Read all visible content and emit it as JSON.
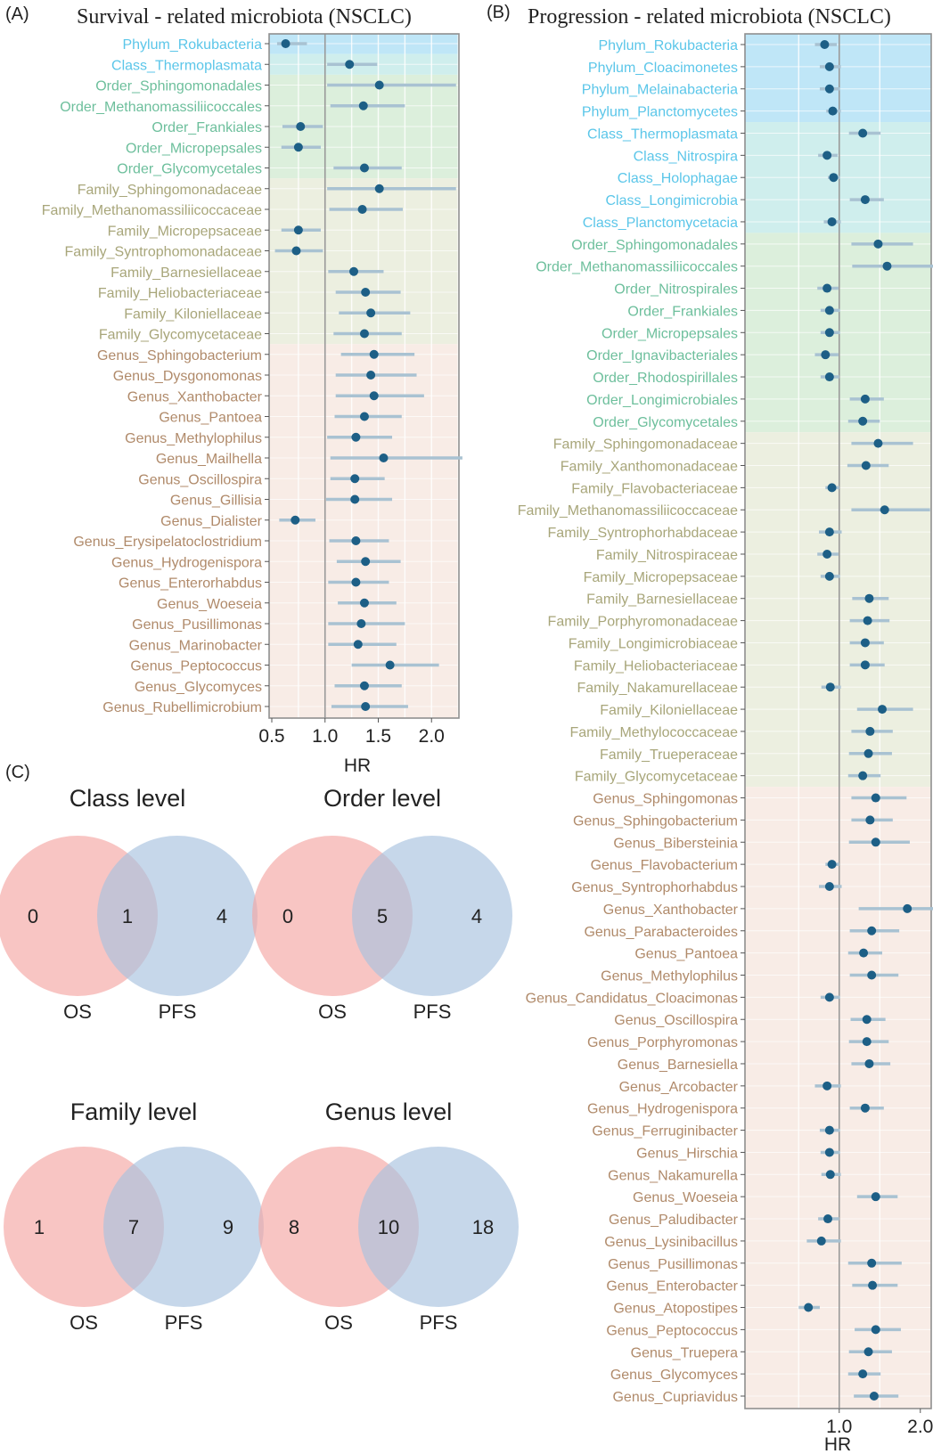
{
  "colors": {
    "phylum": "#5bc6e9",
    "class": "#5bc6e9",
    "order": "#6dbf9c",
    "family": "#a8a67a",
    "genus": "#b08a6a",
    "band_phylum": "#bfe6f7",
    "band_class": "#cfeeed",
    "band_order": "#dcefdc",
    "band_family": "#ecefe0",
    "band_genus": "#f8ece6",
    "point": "#1d5f86",
    "ci": "#a9c2d2",
    "venn_os": "#f4a6a3",
    "venn_pfs": "#a8c2df"
  },
  "panel_a": {
    "label": "(A)",
    "title": "Survival - related microbiota (NSCLC)",
    "xlabel": "HR",
    "ticks": [
      "0.5",
      "1.0",
      "1.5",
      "2.0"
    ]
  },
  "panel_b": {
    "label": "(B)",
    "title": "Progression - related microbiota (NSCLC)",
    "xlabel": "HR",
    "ticks": [
      "1.0",
      "2.0"
    ]
  },
  "panel_c": {
    "label": "(C)",
    "venns": [
      {
        "title": "Class level",
        "left": "0",
        "mid": "1",
        "right": "4",
        "label_left": "OS",
        "label_right": "PFS"
      },
      {
        "title": "Order level",
        "left": "0",
        "mid": "5",
        "right": "4",
        "label_left": "OS",
        "label_right": "PFS"
      },
      {
        "title": "Family level",
        "left": "1",
        "mid": "7",
        "right": "9",
        "label_left": "OS",
        "label_right": "PFS"
      },
      {
        "title": "Genus level",
        "left": "8",
        "mid": "10",
        "right": "18",
        "label_left": "OS",
        "label_right": "PFS"
      }
    ]
  },
  "chart_data": [
    {
      "type": "scatter",
      "subtype": "forest",
      "title": "Survival - related microbiota (NSCLC)",
      "xlabel": "HR",
      "xlim": [
        0.5,
        2.3
      ],
      "reference_line": 1.0,
      "grid": true,
      "rows": [
        {
          "label": "Phylum_Rokubacteria",
          "level": "phylum",
          "hr": 0.63,
          "lo": 0.55,
          "hi": 0.83
        },
        {
          "label": "Class_Thermoplasmata",
          "level": "class",
          "hr": 1.23,
          "lo": 1.02,
          "hi": 1.49
        },
        {
          "label": "Order_Sphingomonadales",
          "level": "order",
          "hr": 1.51,
          "lo": 1.02,
          "hi": 2.23
        },
        {
          "label": "Order_Methanomassiliicoccales",
          "level": "order",
          "hr": 1.36,
          "lo": 1.05,
          "hi": 1.75
        },
        {
          "label": "Order_Frankiales",
          "level": "order",
          "hr": 0.77,
          "lo": 0.6,
          "hi": 0.98
        },
        {
          "label": "Order_Micropepsales",
          "level": "order",
          "hr": 0.75,
          "lo": 0.59,
          "hi": 0.96
        },
        {
          "label": "Order_Glycomycetales",
          "level": "order",
          "hr": 1.37,
          "lo": 1.08,
          "hi": 1.72
        },
        {
          "label": "Family_Sphingomonadaceae",
          "level": "family",
          "hr": 1.51,
          "lo": 1.02,
          "hi": 2.23
        },
        {
          "label": "Family_Methanomassiliicoccaceae",
          "level": "family",
          "hr": 1.35,
          "lo": 1.04,
          "hi": 1.73
        },
        {
          "label": "Family_Micropepsaceae",
          "level": "family",
          "hr": 0.75,
          "lo": 0.59,
          "hi": 0.96
        },
        {
          "label": "Family_Syntrophomonadaceae",
          "level": "family",
          "hr": 0.73,
          "lo": 0.53,
          "hi": 0.98
        },
        {
          "label": "Family_Barnesiellaceae",
          "level": "family",
          "hr": 1.27,
          "lo": 1.03,
          "hi": 1.55
        },
        {
          "label": "Family_Heliobacteriaceae",
          "level": "family",
          "hr": 1.38,
          "lo": 1.1,
          "hi": 1.71
        },
        {
          "label": "Family_Kiloniellaceae",
          "level": "family",
          "hr": 1.43,
          "lo": 1.13,
          "hi": 1.8
        },
        {
          "label": "Family_Glycomycetaceae",
          "level": "family",
          "hr": 1.37,
          "lo": 1.08,
          "hi": 1.72
        },
        {
          "label": "Genus_Sphingobacterium",
          "level": "genus",
          "hr": 1.46,
          "lo": 1.15,
          "hi": 1.84
        },
        {
          "label": "Genus_Dysgonomonas",
          "level": "genus",
          "hr": 1.43,
          "lo": 1.1,
          "hi": 1.86
        },
        {
          "label": "Genus_Xanthobacter",
          "level": "genus",
          "hr": 1.46,
          "lo": 1.1,
          "hi": 1.93
        },
        {
          "label": "Genus_Pantoea",
          "level": "genus",
          "hr": 1.37,
          "lo": 1.09,
          "hi": 1.72
        },
        {
          "label": "Genus_Methylophilus",
          "level": "genus",
          "hr": 1.29,
          "lo": 1.02,
          "hi": 1.63
        },
        {
          "label": "Genus_Mailhella",
          "level": "genus",
          "hr": 1.55,
          "lo": 1.05,
          "hi": 2.3
        },
        {
          "label": "Genus_Oscillospira",
          "level": "genus",
          "hr": 1.28,
          "lo": 1.05,
          "hi": 1.56
        },
        {
          "label": "Genus_Gillisia",
          "level": "genus",
          "hr": 1.28,
          "lo": 1.01,
          "hi": 1.63
        },
        {
          "label": "Genus_Dialister",
          "level": "genus",
          "hr": 0.72,
          "lo": 0.57,
          "hi": 0.91
        },
        {
          "label": "Genus_Erysipelatoclostridium",
          "level": "genus",
          "hr": 1.29,
          "lo": 1.04,
          "hi": 1.6
        },
        {
          "label": "Genus_Hydrogenispora",
          "level": "genus",
          "hr": 1.38,
          "lo": 1.11,
          "hi": 1.71
        },
        {
          "label": "Genus_Enterorhabdus",
          "level": "genus",
          "hr": 1.29,
          "lo": 1.03,
          "hi": 1.6
        },
        {
          "label": "Genus_Woeseia",
          "level": "genus",
          "hr": 1.37,
          "lo": 1.12,
          "hi": 1.67
        },
        {
          "label": "Genus_Pusillimonas",
          "level": "genus",
          "hr": 1.34,
          "lo": 1.03,
          "hi": 1.75
        },
        {
          "label": "Genus_Marinobacter",
          "level": "genus",
          "hr": 1.31,
          "lo": 1.03,
          "hi": 1.67
        },
        {
          "label": "Genus_Peptococcus",
          "level": "genus",
          "hr": 1.61,
          "lo": 1.25,
          "hi": 2.07
        },
        {
          "label": "Genus_Glycomyces",
          "level": "genus",
          "hr": 1.37,
          "lo": 1.09,
          "hi": 1.72
        },
        {
          "label": "Genus_Rubellimicrobium",
          "level": "genus",
          "hr": 1.38,
          "lo": 1.06,
          "hi": 1.78
        }
      ]
    },
    {
      "type": "scatter",
      "subtype": "forest",
      "title": "Progression - related microbiota (NSCLC)",
      "xlabel": "HR",
      "xlim": [
        0.4,
        2.7
      ],
      "reference_line": 1.0,
      "grid": true,
      "rows": [
        {
          "label": "Phylum_Rokubacteria",
          "level": "phylum",
          "hr": 0.82,
          "lo": 0.7,
          "hi": 0.97
        },
        {
          "label": "Phylum_Cloacimonetes",
          "level": "phylum",
          "hr": 0.88,
          "lo": 0.76,
          "hi": 1.02
        },
        {
          "label": "Phylum_Melainabacteria",
          "level": "phylum",
          "hr": 0.88,
          "lo": 0.76,
          "hi": 1.01
        },
        {
          "label": "Phylum_Planctomycetes",
          "level": "phylum",
          "hr": 0.92,
          "lo": 0.84,
          "hi": 1.02
        },
        {
          "label": "Class_Thermoplasmata",
          "level": "class",
          "hr": 1.29,
          "lo": 1.12,
          "hi": 1.51
        },
        {
          "label": "Class_Nitrospira",
          "level": "class",
          "hr": 0.85,
          "lo": 0.74,
          "hi": 0.98
        },
        {
          "label": "Class_Holophagae",
          "level": "class",
          "hr": 0.93,
          "lo": 0.86,
          "hi": 1.01
        },
        {
          "label": "Class_Longimicrobia",
          "level": "class",
          "hr": 1.32,
          "lo": 1.13,
          "hi": 1.55
        },
        {
          "label": "Class_Planctomycetacia",
          "level": "class",
          "hr": 0.91,
          "lo": 0.81,
          "hi": 1.02
        },
        {
          "label": "Order_Sphingomonadales",
          "level": "order",
          "hr": 1.48,
          "lo": 1.15,
          "hi": 1.91
        },
        {
          "label": "Order_Methanomassiliicoccales",
          "level": "order",
          "hr": 1.59,
          "lo": 1.16,
          "hi": 2.18
        },
        {
          "label": "Order_Nitrospirales",
          "level": "order",
          "hr": 0.85,
          "lo": 0.73,
          "hi": 0.99
        },
        {
          "label": "Order_Frankiales",
          "level": "order",
          "hr": 0.88,
          "lo": 0.77,
          "hi": 1.01
        },
        {
          "label": "Order_Micropepsales",
          "level": "order",
          "hr": 0.88,
          "lo": 0.77,
          "hi": 1.01
        },
        {
          "label": "Order_Ignavibacteriales",
          "level": "order",
          "hr": 0.83,
          "lo": 0.7,
          "hi": 0.99
        },
        {
          "label": "Order_Rhodospirillales",
          "level": "order",
          "hr": 0.88,
          "lo": 0.77,
          "hi": 1.0
        },
        {
          "label": "Order_Longimicrobiales",
          "level": "order",
          "hr": 1.32,
          "lo": 1.13,
          "hi": 1.55
        },
        {
          "label": "Order_Glycomycetales",
          "level": "order",
          "hr": 1.29,
          "lo": 1.11,
          "hi": 1.5
        },
        {
          "label": "Family_Sphingomonadaceae",
          "level": "family",
          "hr": 1.48,
          "lo": 1.15,
          "hi": 1.91
        },
        {
          "label": "Family_Xanthomonadaceae",
          "level": "family",
          "hr": 1.33,
          "lo": 1.1,
          "hi": 1.61
        },
        {
          "label": "Family_Flavobacteriaceae",
          "level": "family",
          "hr": 0.91,
          "lo": 0.83,
          "hi": 1.0
        },
        {
          "label": "Family_Methanomassiliicoccaceae",
          "level": "family",
          "hr": 1.56,
          "lo": 1.15,
          "hi": 2.12
        },
        {
          "label": "Family_Syntrophorhabdaceae",
          "level": "family",
          "hr": 0.88,
          "lo": 0.75,
          "hi": 1.03
        },
        {
          "label": "Family_Nitrospiraceae",
          "level": "family",
          "hr": 0.85,
          "lo": 0.73,
          "hi": 0.99
        },
        {
          "label": "Family_Micropepsaceae",
          "level": "family",
          "hr": 0.88,
          "lo": 0.77,
          "hi": 1.01
        },
        {
          "label": "Family_Barnesiellaceae",
          "level": "family",
          "hr": 1.37,
          "lo": 1.16,
          "hi": 1.61
        },
        {
          "label": "Family_Porphyromonadaceae",
          "level": "family",
          "hr": 1.35,
          "lo": 1.13,
          "hi": 1.62
        },
        {
          "label": "Family_Longimicrobiaceae",
          "level": "family",
          "hr": 1.32,
          "lo": 1.13,
          "hi": 1.55
        },
        {
          "label": "Family_Heliobacteriaceae",
          "level": "family",
          "hr": 1.32,
          "lo": 1.13,
          "hi": 1.56
        },
        {
          "label": "Family_Nakamurellaceae",
          "level": "family",
          "hr": 0.89,
          "lo": 0.78,
          "hi": 1.02
        },
        {
          "label": "Family_Kiloniellaceae",
          "level": "family",
          "hr": 1.53,
          "lo": 1.22,
          "hi": 1.91
        },
        {
          "label": "Family_Methylococcaceae",
          "level": "family",
          "hr": 1.38,
          "lo": 1.15,
          "hi": 1.66
        },
        {
          "label": "Family_Trueperaceae",
          "level": "family",
          "hr": 1.36,
          "lo": 1.12,
          "hi": 1.65
        },
        {
          "label": "Family_Glycomycetaceae",
          "level": "family",
          "hr": 1.29,
          "lo": 1.11,
          "hi": 1.51
        },
        {
          "label": "Genus_Sphingomonas",
          "level": "genus",
          "hr": 1.45,
          "lo": 1.15,
          "hi": 1.83
        },
        {
          "label": "Genus_Sphingobacterium",
          "level": "genus",
          "hr": 1.38,
          "lo": 1.15,
          "hi": 1.66
        },
        {
          "label": "Genus_Bibersteinia",
          "level": "genus",
          "hr": 1.45,
          "lo": 1.12,
          "hi": 1.87
        },
        {
          "label": "Genus_Flavobacterium",
          "level": "genus",
          "hr": 0.91,
          "lo": 0.83,
          "hi": 1.0
        },
        {
          "label": "Genus_Syntrophorhabdus",
          "level": "genus",
          "hr": 0.88,
          "lo": 0.75,
          "hi": 1.03
        },
        {
          "label": "Genus_Xanthobacter",
          "level": "genus",
          "hr": 1.84,
          "lo": 1.24,
          "hi": 2.75
        },
        {
          "label": "Genus_Parabacteroides",
          "level": "genus",
          "hr": 1.4,
          "lo": 1.13,
          "hi": 1.74
        },
        {
          "label": "Genus_Pantoea",
          "level": "genus",
          "hr": 1.3,
          "lo": 1.11,
          "hi": 1.53
        },
        {
          "label": "Genus_Methylophilus",
          "level": "genus",
          "hr": 1.4,
          "lo": 1.13,
          "hi": 1.73
        },
        {
          "label": "Genus_Candidatus_Cloacimonas",
          "level": "genus",
          "hr": 0.88,
          "lo": 0.77,
          "hi": 1.01
        },
        {
          "label": "Genus_Oscillospira",
          "level": "genus",
          "hr": 1.34,
          "lo": 1.14,
          "hi": 1.57
        },
        {
          "label": "Genus_Porphyromonas",
          "level": "genus",
          "hr": 1.34,
          "lo": 1.12,
          "hi": 1.61
        },
        {
          "label": "Genus_Barnesiella",
          "level": "genus",
          "hr": 1.37,
          "lo": 1.15,
          "hi": 1.63
        },
        {
          "label": "Genus_Arcobacter",
          "level": "genus",
          "hr": 0.85,
          "lo": 0.7,
          "hi": 1.02
        },
        {
          "label": "Genus_Hydrogenispora",
          "level": "genus",
          "hr": 1.32,
          "lo": 1.13,
          "hi": 1.55
        },
        {
          "label": "Genus_Ferruginibacter",
          "level": "genus",
          "hr": 0.88,
          "lo": 0.76,
          "hi": 1.01
        },
        {
          "label": "Genus_Hirschia",
          "level": "genus",
          "hr": 0.88,
          "lo": 0.77,
          "hi": 1.01
        },
        {
          "label": "Genus_Nakamurella",
          "level": "genus",
          "hr": 0.89,
          "lo": 0.78,
          "hi": 1.02
        },
        {
          "label": "Genus_Woeseia",
          "level": "genus",
          "hr": 1.45,
          "lo": 1.22,
          "hi": 1.72
        },
        {
          "label": "Genus_Paludibacter",
          "level": "genus",
          "hr": 0.86,
          "lo": 0.74,
          "hi": 1.0
        },
        {
          "label": "Genus_Lysinibacillus",
          "level": "genus",
          "hr": 0.78,
          "lo": 0.6,
          "hi": 1.02
        },
        {
          "label": "Genus_Pusillimonas",
          "level": "genus",
          "hr": 1.4,
          "lo": 1.11,
          "hi": 1.77
        },
        {
          "label": "Genus_Enterobacter",
          "level": "genus",
          "hr": 1.41,
          "lo": 1.16,
          "hi": 1.72
        },
        {
          "label": "Genus_Atopostipes",
          "level": "genus",
          "hr": 0.62,
          "lo": 0.5,
          "hi": 0.76
        },
        {
          "label": "Genus_Peptococcus",
          "level": "genus",
          "hr": 1.45,
          "lo": 1.19,
          "hi": 1.76
        },
        {
          "label": "Genus_Truepera",
          "level": "genus",
          "hr": 1.36,
          "lo": 1.12,
          "hi": 1.65
        },
        {
          "label": "Genus_Glycomyces",
          "level": "genus",
          "hr": 1.29,
          "lo": 1.11,
          "hi": 1.51
        },
        {
          "label": "Genus_Cupriavidus",
          "level": "genus",
          "hr": 1.43,
          "lo": 1.18,
          "hi": 1.73
        }
      ]
    }
  ]
}
